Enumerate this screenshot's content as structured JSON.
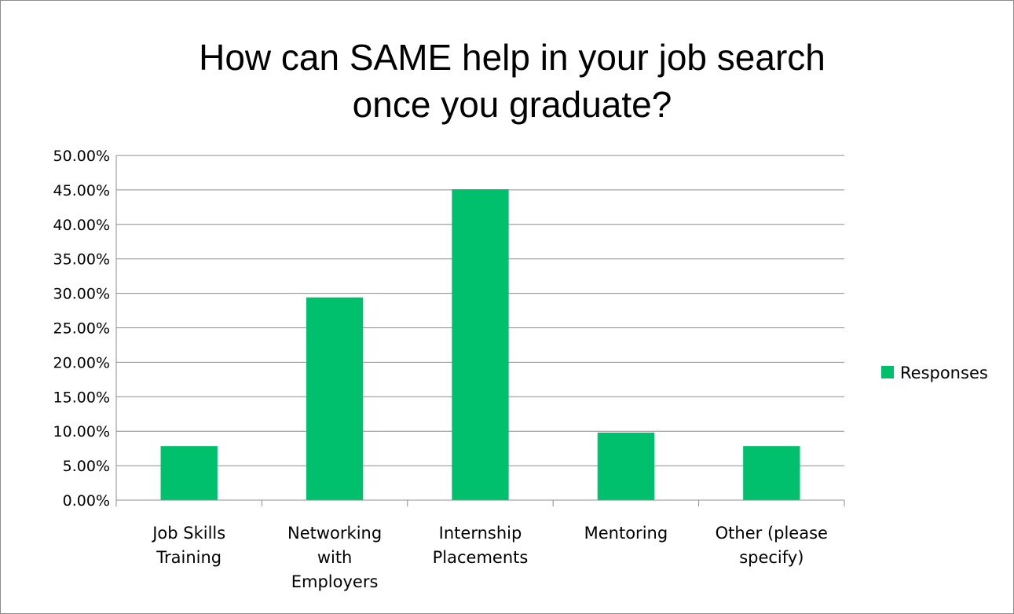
{
  "chart_data": {
    "type": "bar",
    "title_lines": [
      "How can SAME help in your job search",
      "once you graduate?"
    ],
    "categories": [
      [
        "Job Skills",
        "Training"
      ],
      [
        "Networking",
        "with",
        "Employers"
      ],
      [
        "Internship",
        "Placements"
      ],
      [
        "Mentoring"
      ],
      [
        "Other (please",
        "specify)"
      ]
    ],
    "series": [
      {
        "name": "Responses",
        "color": "#00c06d",
        "values": [
          0.0784,
          0.2941,
          0.451,
          0.098,
          0.0784
        ]
      }
    ],
    "ylim": [
      0,
      0.5
    ],
    "y_ticks": [
      0,
      0.05,
      0.1,
      0.15,
      0.2,
      0.25,
      0.3,
      0.35,
      0.4,
      0.45,
      0.5
    ],
    "y_tick_labels": [
      "0.00%",
      "5.00%",
      "10.00%",
      "15.00%",
      "20.00%",
      "25.00%",
      "30.00%",
      "35.00%",
      "40.00%",
      "45.00%",
      "50.00%"
    ],
    "grid": true,
    "legend_position": "right"
  }
}
